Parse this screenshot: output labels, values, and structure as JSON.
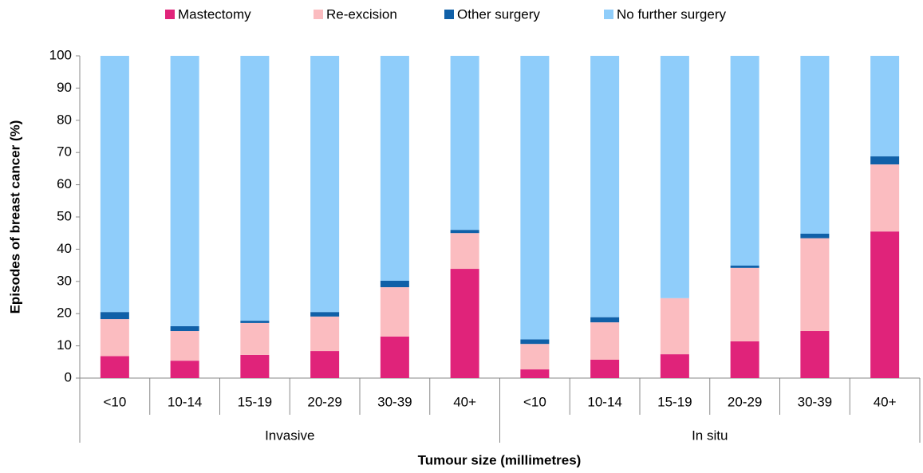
{
  "chart_data": {
    "type": "stacked_bar",
    "y_label": "Episodes of breast cancer (%)",
    "x_label": "Tumour size (millimetres)",
    "groups": [
      {
        "name": "Invasive",
        "categories": [
          "<10",
          "10-14",
          "15-19",
          "20-29",
          "30-39",
          "40+"
        ]
      },
      {
        "name": "In situ",
        "categories": [
          "<10",
          "10-14",
          "15-19",
          "20-29",
          "30-39",
          "40+"
        ]
      }
    ],
    "series": [
      {
        "name": "Mastectomy",
        "color": "#e0237a",
        "values": [
          6.8,
          5.4,
          7.2,
          8.4,
          12.9,
          33.9,
          2.7,
          5.7,
          7.4,
          11.4,
          14.6,
          45.5
        ]
      },
      {
        "name": "Re-excision",
        "color": "#fbbcc0",
        "values": [
          11.5,
          9.2,
          9.9,
          10.7,
          15.3,
          11.1,
          7.9,
          11.6,
          17.4,
          22.8,
          28.8,
          20.8
        ]
      },
      {
        "name": "Other surgery",
        "color": "#1060a8",
        "values": [
          2.2,
          1.5,
          0.7,
          1.4,
          2.0,
          1.0,
          1.4,
          1.6,
          0,
          0.7,
          1.4,
          2.5
        ]
      },
      {
        "name": "No further surgery",
        "color": "#8fcdfa",
        "values": [
          79.5,
          83.9,
          82.2,
          79.5,
          69.8,
          54.0,
          88.0,
          81.1,
          75.2,
          65.1,
          55.2,
          31.2
        ]
      }
    ],
    "ylim": [
      0,
      100
    ],
    "yticks": [
      0,
      10,
      20,
      30,
      40,
      50,
      60,
      70,
      80,
      90,
      100
    ],
    "legend": "top"
  }
}
